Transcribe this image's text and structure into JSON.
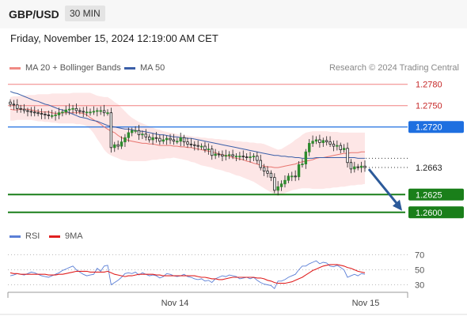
{
  "header": {
    "pair": "GBP/USD",
    "timeframe": "30 MIN"
  },
  "timestamp": "Friday, November 15, 2024 12:19:00 AM CET",
  "legend": {
    "ma20_label": "MA 20 + Bollinger Bands",
    "ma50_label": "MA 50",
    "copyright": "Research © 2024 Trading Central"
  },
  "colors": {
    "ma20": "#e8756f",
    "ma50": "#3b5fa8",
    "band": "#fde2e2",
    "up": "#2e8b2e",
    "down": "#c62828",
    "support": "#1a7f1a",
    "pivot": "#1e6fe0",
    "resistance": "#f08080",
    "arrow": "#2c5a9a",
    "rsi": "#5b7fd6",
    "rsi_ma": "#e02020"
  },
  "chart_data": [
    {
      "type": "candlestick",
      "y_range": [
        1.2582,
        1.2793
      ],
      "x_labels": [
        "Nov 14",
        "Nov 15"
      ],
      "levels": [
        {
          "value": 1.278,
          "label": "1.2780",
          "kind": "resistance"
        },
        {
          "value": 1.275,
          "label": "1.2750",
          "kind": "resistance"
        },
        {
          "value": 1.272,
          "label": "1.2720",
          "kind": "pivot"
        },
        {
          "value": 1.2663,
          "label": "1.2663",
          "kind": "current"
        },
        {
          "value": 1.2625,
          "label": "1.2625",
          "kind": "support"
        },
        {
          "value": 1.26,
          "label": "1.2600",
          "kind": "support"
        }
      ],
      "close": [
        1.2752,
        1.2751,
        1.2746,
        1.2745,
        1.2743,
        1.2742,
        1.2741,
        1.274,
        1.2739,
        1.2738,
        1.2737,
        1.2736,
        1.2736,
        1.2737,
        1.274,
        1.2741,
        1.2744,
        1.2745,
        1.2746,
        1.2743,
        1.2742,
        1.2741,
        1.2741,
        1.2741,
        1.2742,
        1.2743,
        1.2743,
        1.274,
        1.274,
        1.2691,
        1.2695,
        1.2693,
        1.2699,
        1.2705,
        1.2712,
        1.2715,
        1.2715,
        1.2709,
        1.271,
        1.2706,
        1.2702,
        1.2705,
        1.2704,
        1.27,
        1.2702,
        1.2704,
        1.2702,
        1.27,
        1.27,
        1.2705,
        1.2699,
        1.2696,
        1.2695,
        1.2694,
        1.2693,
        1.2693,
        1.2688,
        1.2689,
        1.268,
        1.2682,
        1.2681,
        1.2679,
        1.268,
        1.2681,
        1.2679,
        1.2679,
        1.2679,
        1.2678,
        1.2677,
        1.2678,
        1.2679,
        1.2673,
        1.2663,
        1.2658,
        1.2655,
        1.2649,
        1.2631,
        1.2636,
        1.264,
        1.2645,
        1.2651,
        1.2651,
        1.265,
        1.2667,
        1.2668,
        1.2685,
        1.2697,
        1.27,
        1.2702,
        1.2698,
        1.2701,
        1.2699,
        1.2696,
        1.2693,
        1.2694,
        1.2688,
        1.269,
        1.267,
        1.2661,
        1.2664,
        1.2663,
        1.2665,
        1.2663
      ],
      "ma20": [
        1.2745,
        1.2744,
        1.2744,
        1.2745,
        1.2745,
        1.2745,
        1.2744,
        1.2743,
        1.2742,
        1.2741,
        1.2741,
        1.2741,
        1.274,
        1.2739,
        1.2739,
        1.274,
        1.274,
        1.274,
        1.274,
        1.274,
        1.274,
        1.2739,
        1.2737,
        1.2733,
        1.273,
        1.2727,
        1.2724,
        1.272,
        1.2717,
        1.2714,
        1.2712,
        1.2708,
        1.2705,
        1.2703,
        1.2701,
        1.27,
        1.2699,
        1.2698,
        1.2697,
        1.2697,
        1.2696,
        1.2696,
        1.2695,
        1.2694,
        1.2694,
        1.2694,
        1.2694,
        1.2693,
        1.2693,
        1.2692,
        1.2692,
        1.2691,
        1.2691,
        1.269,
        1.2689,
        1.2688,
        1.2687,
        1.2686,
        1.2685,
        1.2684,
        1.2682,
        1.2681,
        1.268,
        1.2679,
        1.2677,
        1.2676,
        1.2675,
        1.2674,
        1.2672,
        1.2671,
        1.2669,
        1.2668,
        1.2666,
        1.2665,
        1.2664,
        1.2664,
        1.2663,
        1.2663,
        1.2664,
        1.2665,
        1.2666,
        1.2667,
        1.2668,
        1.267,
        1.2671,
        1.2672,
        1.2673,
        1.2674,
        1.2676,
        1.2677,
        1.2677,
        1.2678,
        1.2679,
        1.268,
        1.2681,
        1.2682,
        1.2683,
        1.2683,
        1.2684,
        1.2684,
        1.2684,
        1.2685,
        1.2685
      ],
      "ma50": [
        1.277,
        1.2768,
        1.2767,
        1.2765,
        1.2763,
        1.2761,
        1.2759,
        1.2757,
        1.2756,
        1.2754,
        1.2752,
        1.2751,
        1.2749,
        1.2747,
        1.2745,
        1.2744,
        1.2742,
        1.274,
        1.2738,
        1.2736,
        1.2734,
        1.2733,
        1.2732,
        1.273,
        1.2729,
        1.2728,
        1.2726,
        1.2724,
        1.2722,
        1.2721,
        1.272,
        1.2719,
        1.2718,
        1.2717,
        1.2717,
        1.2716,
        1.2715,
        1.2714,
        1.2714,
        1.2713,
        1.2712,
        1.2711,
        1.271,
        1.2709,
        1.2709,
        1.2708,
        1.2707,
        1.2706,
        1.2706,
        1.2705,
        1.2705,
        1.2704,
        1.2704,
        1.2703,
        1.2702,
        1.2701,
        1.27,
        1.2699,
        1.2698,
        1.2697,
        1.2696,
        1.2695,
        1.2694,
        1.2693,
        1.2692,
        1.2691,
        1.269,
        1.2689,
        1.2688,
        1.2687,
        1.2686,
        1.2685,
        1.2684,
        1.2683,
        1.2682,
        1.2681,
        1.268,
        1.268,
        1.2679,
        1.2679,
        1.2678,
        1.2678,
        1.2677,
        1.2677,
        1.2676,
        1.2676,
        1.2676,
        1.2676,
        1.2677,
        1.2677,
        1.2677,
        1.2677,
        1.2677,
        1.2677,
        1.2677,
        1.2677,
        1.2677,
        1.2677,
        1.2677,
        1.2677,
        1.2676,
        1.2676,
        1.2676
      ],
      "band_upper": [
        1.2762,
        1.2763,
        1.2763,
        1.2764,
        1.2764,
        1.2765,
        1.2765,
        1.2765,
        1.2766,
        1.2766,
        1.2766,
        1.2766,
        1.2767,
        1.2767,
        1.2767,
        1.2767,
        1.2767,
        1.2767,
        1.2768,
        1.2768,
        1.2768,
        1.2768,
        1.2768,
        1.2768,
        1.2766,
        1.2764,
        1.2763,
        1.2762,
        1.2762,
        1.2759,
        1.2755,
        1.2752,
        1.2747,
        1.2742,
        1.2737,
        1.2733,
        1.273,
        1.2727,
        1.2725,
        1.2723,
        1.2721,
        1.2719,
        1.2717,
        1.2716,
        1.2714,
        1.2713,
        1.2712,
        1.2711,
        1.271,
        1.2709,
        1.2708,
        1.2708,
        1.2707,
        1.2706,
        1.2706,
        1.2705,
        1.2705,
        1.2704,
        1.2704,
        1.2703,
        1.2703,
        1.2702,
        1.2702,
        1.2701,
        1.2701,
        1.27,
        1.27,
        1.2699,
        1.2699,
        1.2698,
        1.2698,
        1.2697,
        1.2697,
        1.2696,
        1.2694,
        1.2692,
        1.269,
        1.2688,
        1.2689,
        1.2692,
        1.2695,
        1.2698,
        1.2702,
        1.2705,
        1.2709,
        1.2712,
        1.2713,
        1.2714,
        1.2714,
        1.2714,
        1.2714,
        1.2714,
        1.2713,
        1.2713,
        1.2713,
        1.2712,
        1.2712,
        1.2712,
        1.2712,
        1.2712,
        1.2712,
        1.2712,
        1.2712
      ],
      "band_lower": [
        1.2729,
        1.2729,
        1.273,
        1.273,
        1.273,
        1.273,
        1.273,
        1.2729,
        1.2728,
        1.2728,
        1.2727,
        1.2727,
        1.2726,
        1.2726,
        1.2725,
        1.2725,
        1.2725,
        1.2725,
        1.2725,
        1.2724,
        1.2724,
        1.2723,
        1.2721,
        1.2717,
        1.2711,
        1.2703,
        1.2696,
        1.2688,
        1.2683,
        1.268,
        1.2678,
        1.2676,
        1.2674,
        1.2673,
        1.2672,
        1.2672,
        1.2672,
        1.2672,
        1.2672,
        1.2672,
        1.2673,
        1.2674,
        1.2674,
        1.2675,
        1.2675,
        1.2676,
        1.2676,
        1.2677,
        1.2676,
        1.2675,
        1.2674,
        1.2673,
        1.2671,
        1.267,
        1.2668,
        1.2666,
        1.2665,
        1.2664,
        1.2663,
        1.2661,
        1.266,
        1.2659,
        1.2657,
        1.2656,
        1.2654,
        1.2652,
        1.2651,
        1.2649,
        1.2647,
        1.2645,
        1.2643,
        1.264,
        1.2637,
        1.2634,
        1.2631,
        1.2628,
        1.2625,
        1.2623,
        1.2625,
        1.2627,
        1.2629,
        1.2631,
        1.2632,
        1.2633,
        1.2634,
        1.2634,
        1.2634,
        1.2633,
        1.2633,
        1.2633,
        1.2633,
        1.2634,
        1.2634,
        1.2635,
        1.2635,
        1.2636,
        1.2636,
        1.2637,
        1.2638,
        1.2638,
        1.2639,
        1.2639,
        1.264
      ],
      "forecast_to": 1.26
    },
    {
      "type": "line",
      "legend": [
        "RSI",
        "9MA"
      ],
      "y_ticks": [
        30,
        50,
        70
      ],
      "y_range": [
        20,
        80
      ],
      "series": [
        {
          "name": "RSI",
          "values": [
            42,
            43,
            45,
            44,
            43,
            45,
            47,
            46,
            44,
            42,
            41,
            40,
            42,
            44,
            46,
            49,
            51,
            53,
            55,
            50,
            47,
            44,
            42,
            43,
            44,
            52,
            48,
            55,
            56,
            30,
            33,
            36,
            40,
            45,
            46,
            45,
            47,
            43,
            46,
            44,
            42,
            43,
            42,
            39,
            41,
            45,
            44,
            42,
            41,
            42,
            44,
            41,
            40,
            38,
            37,
            38,
            35,
            36,
            33,
            38,
            40,
            42,
            41,
            43,
            42,
            41,
            38,
            39,
            40,
            38,
            40,
            36,
            33,
            31,
            30,
            29,
            25,
            35,
            35,
            37,
            40,
            42,
            44,
            50,
            55,
            55,
            58,
            60,
            62,
            58,
            60,
            59,
            55,
            54,
            56,
            53,
            50,
            40,
            42,
            44,
            42,
            45,
            44
          ]
        },
        {
          "name": "9MA",
          "values": [
            46,
            45,
            45,
            44,
            44,
            44,
            44,
            44,
            44,
            44,
            44,
            43,
            43,
            43,
            44,
            44,
            45,
            46,
            47,
            48,
            48,
            48,
            48,
            47,
            47,
            47,
            47,
            47,
            48,
            46,
            44,
            43,
            42,
            41,
            42,
            42,
            43,
            44,
            44,
            44,
            44,
            44,
            43,
            43,
            42,
            42,
            42,
            42,
            42,
            42,
            42,
            42,
            42,
            42,
            41,
            40,
            40,
            39,
            38,
            38,
            37,
            37,
            38,
            39,
            40,
            40,
            40,
            40,
            40,
            40,
            40,
            39,
            39,
            38,
            36,
            35,
            33,
            32,
            32,
            32,
            33,
            34,
            36,
            38,
            40,
            43,
            46,
            49,
            51,
            53,
            55,
            56,
            57,
            57,
            57,
            56,
            55,
            53,
            52,
            50,
            48,
            47,
            46
          ]
        }
      ]
    }
  ]
}
